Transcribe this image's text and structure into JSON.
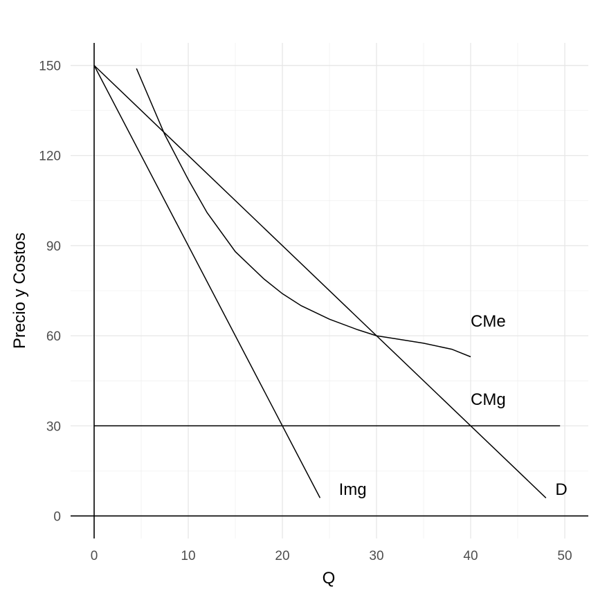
{
  "chart_data": {
    "type": "line",
    "xlabel": "Q",
    "ylabel": "Precio y Costos",
    "xlim": [
      -2.5,
      52.5
    ],
    "ylim": [
      -7.5,
      157.5
    ],
    "x_ticks": [
      0,
      10,
      20,
      30,
      40,
      50
    ],
    "y_ticks": [
      0,
      30,
      60,
      90,
      120,
      150
    ],
    "grid": true,
    "series": [
      {
        "name": "D",
        "points": [
          [
            0,
            150
          ],
          [
            48,
            6
          ]
        ]
      },
      {
        "name": "Img",
        "points": [
          [
            0,
            150
          ],
          [
            24,
            6
          ]
        ]
      },
      {
        "name": "CMg",
        "points": [
          [
            0,
            30
          ],
          [
            49.5,
            30
          ]
        ]
      },
      {
        "name": "CMe",
        "points": [
          [
            4.5,
            149
          ],
          [
            7.5,
            127
          ],
          [
            10,
            112
          ],
          [
            12,
            101
          ],
          [
            15,
            88
          ],
          [
            18,
            79
          ],
          [
            20,
            74
          ],
          [
            22,
            70
          ],
          [
            25,
            65.5
          ],
          [
            28,
            62
          ],
          [
            30,
            60
          ],
          [
            32,
            59
          ],
          [
            35,
            57.5
          ],
          [
            38,
            55.5
          ],
          [
            40,
            53
          ]
        ]
      }
    ],
    "labels": [
      {
        "text": "CMe",
        "x": 40,
        "y": 63
      },
      {
        "text": "CMg",
        "x": 40,
        "y": 37
      },
      {
        "text": "Img",
        "x": 26,
        "y": 7
      },
      {
        "text": "D",
        "x": 49,
        "y": 7
      }
    ]
  }
}
